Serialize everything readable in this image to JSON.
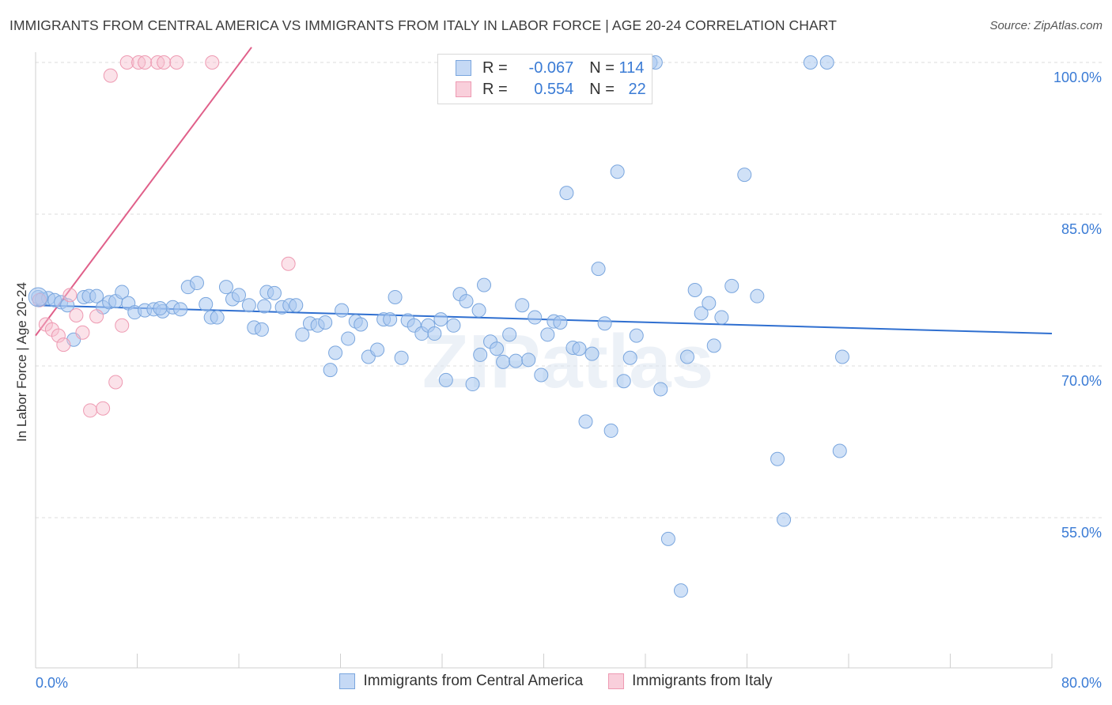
{
  "title": "IMMIGRANTS FROM CENTRAL AMERICA VS IMMIGRANTS FROM ITALY IN LABOR FORCE | AGE 20-24 CORRELATION CHART",
  "source": "Source: ZipAtlas.com",
  "watermark": "ZIPatlas",
  "colors": {
    "blue_fill": "#a9c8f0",
    "blue_stroke": "#7aa6de",
    "blue_line": "#2f6fd0",
    "pink_fill": "#f7bfcf",
    "pink_stroke": "#ee9ab2",
    "pink_line": "#e0608a",
    "axis_label": "#3a7bd5"
  },
  "legend_top": {
    "rows": [
      {
        "r_label": "R =",
        "r_value": "-0.067",
        "n_label": "N =",
        "n_value": "114"
      },
      {
        "r_label": "R =",
        "r_value": "0.554",
        "n_label": "N =",
        "n_value": "22"
      }
    ]
  },
  "chart_data": {
    "type": "scatter",
    "ylabel": "In Labor Force | Age 20-24",
    "xlim": [
      0,
      80
    ],
    "ylim": [
      40,
      101.5
    ],
    "x_tick_labels": [
      "0.0%",
      "80.0%"
    ],
    "y_ticks": [
      55,
      70,
      85,
      100
    ],
    "y_tick_labels": [
      "55.0%",
      "70.0%",
      "85.0%",
      "100.0%"
    ],
    "legend_position": "bottom-center",
    "grid": "horizontal dashed",
    "series": [
      {
        "name": "Immigrants from Central America",
        "color": "#a9c8f0",
        "trend": {
          "x": [
            0,
            80
          ],
          "y": [
            76.0,
            73.2
          ]
        },
        "points": [
          [
            0.2,
            76.8
          ],
          [
            0.5,
            76.6
          ],
          [
            1.0,
            76.7
          ],
          [
            1.5,
            76.5
          ],
          [
            2.0,
            76.3
          ],
          [
            2.5,
            76.0
          ],
          [
            3.0,
            72.6
          ],
          [
            3.8,
            76.8
          ],
          [
            4.2,
            76.9
          ],
          [
            4.8,
            76.9
          ],
          [
            5.3,
            75.8
          ],
          [
            5.8,
            76.3
          ],
          [
            6.3,
            76.4
          ],
          [
            6.8,
            77.3
          ],
          [
            7.3,
            76.2
          ],
          [
            7.8,
            75.3
          ],
          [
            8.6,
            75.5
          ],
          [
            9.3,
            75.6
          ],
          [
            10.0,
            75.4
          ],
          [
            10.8,
            75.8
          ],
          [
            11.4,
            75.6
          ],
          [
            12.0,
            77.8
          ],
          [
            12.7,
            78.2
          ],
          [
            13.4,
            76.1
          ],
          [
            13.8,
            74.8
          ],
          [
            14.3,
            74.8
          ],
          [
            15.0,
            77.8
          ],
          [
            15.5,
            76.6
          ],
          [
            16.0,
            77.0
          ],
          [
            16.8,
            76.0
          ],
          [
            17.2,
            73.8
          ],
          [
            17.8,
            73.6
          ],
          [
            18.2,
            77.3
          ],
          [
            18.8,
            77.2
          ],
          [
            19.4,
            75.8
          ],
          [
            20.0,
            76.0
          ],
          [
            20.5,
            76.0
          ],
          [
            21.0,
            73.1
          ],
          [
            21.6,
            74.2
          ],
          [
            22.2,
            74.0
          ],
          [
            22.8,
            74.3
          ],
          [
            23.2,
            69.6
          ],
          [
            23.6,
            71.3
          ],
          [
            24.1,
            75.5
          ],
          [
            24.6,
            72.7
          ],
          [
            25.2,
            74.4
          ],
          [
            25.6,
            74.1
          ],
          [
            26.2,
            70.9
          ],
          [
            26.9,
            71.6
          ],
          [
            27.4,
            74.6
          ],
          [
            27.9,
            74.6
          ],
          [
            28.3,
            76.8
          ],
          [
            28.8,
            70.8
          ],
          [
            29.3,
            74.5
          ],
          [
            29.8,
            74.0
          ],
          [
            30.4,
            73.2
          ],
          [
            30.9,
            74.0
          ],
          [
            31.4,
            73.2
          ],
          [
            31.9,
            74.6
          ],
          [
            32.3,
            68.6
          ],
          [
            32.9,
            74.0
          ],
          [
            33.4,
            77.1
          ],
          [
            33.9,
            76.4
          ],
          [
            34.4,
            68.2
          ],
          [
            34.9,
            75.5
          ],
          [
            35.3,
            78.0
          ],
          [
            35.8,
            72.4
          ],
          [
            36.3,
            71.7
          ],
          [
            36.8,
            70.4
          ],
          [
            37.3,
            73.1
          ],
          [
            37.8,
            70.5
          ],
          [
            38.3,
            76.0
          ],
          [
            38.8,
            70.6
          ],
          [
            39.3,
            74.8
          ],
          [
            39.8,
            69.1
          ],
          [
            40.3,
            73.1
          ],
          [
            40.8,
            74.4
          ],
          [
            41.3,
            74.3
          ],
          [
            41.8,
            87.1
          ],
          [
            42.3,
            71.8
          ],
          [
            42.8,
            71.7
          ],
          [
            43.3,
            64.5
          ],
          [
            43.8,
            71.2
          ],
          [
            44.3,
            79.6
          ],
          [
            44.8,
            74.2
          ],
          [
            45.3,
            63.6
          ],
          [
            45.8,
            89.2
          ],
          [
            46.3,
            68.5
          ],
          [
            46.8,
            70.8
          ],
          [
            47.3,
            73.0
          ],
          [
            48.0,
            100.0
          ],
          [
            48.4,
            100.0
          ],
          [
            48.8,
            100.0
          ],
          [
            49.2,
            67.7
          ],
          [
            49.8,
            52.9
          ],
          [
            50.8,
            47.8
          ],
          [
            51.3,
            70.9
          ],
          [
            51.9,
            77.5
          ],
          [
            52.4,
            75.2
          ],
          [
            53.0,
            76.2
          ],
          [
            53.4,
            72.0
          ],
          [
            54.0,
            74.8
          ],
          [
            54.8,
            77.9
          ],
          [
            55.8,
            88.9
          ],
          [
            56.8,
            76.9
          ],
          [
            58.4,
            60.8
          ],
          [
            58.9,
            54.8
          ],
          [
            61.0,
            100.0
          ],
          [
            62.3,
            100.0
          ],
          [
            63.3,
            61.6
          ],
          [
            63.5,
            70.9
          ],
          [
            35.0,
            71.1
          ],
          [
            18.0,
            75.9
          ],
          [
            9.8,
            75.7
          ]
        ]
      },
      {
        "name": "Immigrants from Italy",
        "color": "#f7bfcf",
        "trend": {
          "x": [
            0,
            17
          ],
          "y": [
            73.0,
            101.5
          ]
        },
        "points": [
          [
            0.3,
            76.5
          ],
          [
            0.8,
            74.1
          ],
          [
            1.3,
            73.6
          ],
          [
            1.8,
            73.0
          ],
          [
            2.2,
            72.1
          ],
          [
            2.7,
            77.0
          ],
          [
            3.2,
            75.0
          ],
          [
            3.7,
            73.3
          ],
          [
            4.3,
            65.6
          ],
          [
            4.8,
            74.9
          ],
          [
            5.3,
            65.8
          ],
          [
            5.9,
            98.7
          ],
          [
            6.3,
            68.4
          ],
          [
            6.8,
            74.0
          ],
          [
            7.2,
            100.0
          ],
          [
            8.1,
            100.0
          ],
          [
            8.6,
            100.0
          ],
          [
            9.6,
            100.0
          ],
          [
            10.1,
            100.0
          ],
          [
            11.1,
            100.0
          ],
          [
            13.9,
            100.0
          ],
          [
            19.9,
            80.1
          ]
        ]
      }
    ]
  }
}
